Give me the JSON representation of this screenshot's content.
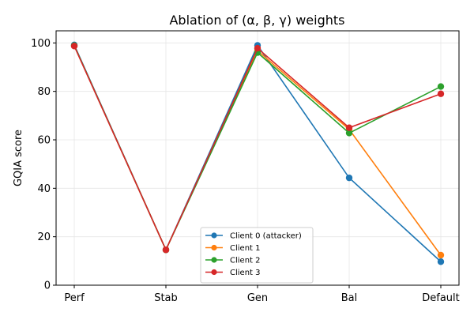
{
  "chart_data": {
    "type": "line",
    "title": "Ablation of (α, β, γ) weights",
    "xlabel": "",
    "ylabel": "GQIA score",
    "categories": [
      "Perf",
      "Stab",
      "Gen",
      "Bal",
      "Default"
    ],
    "ylim": [
      0,
      105
    ],
    "yticks": [
      0,
      20,
      40,
      60,
      80,
      100
    ],
    "grid": true,
    "legend_position": "lower-center",
    "series": [
      {
        "name": "Client 0 (attacker)",
        "color": "#1f77b4",
        "values": [
          99.2,
          14.6,
          99.0,
          44.3,
          9.7
        ]
      },
      {
        "name": "Client 1",
        "color": "#ff7f0e",
        "values": [
          98.8,
          14.6,
          96.8,
          64.3,
          12.4
        ]
      },
      {
        "name": "Client 2",
        "color": "#2ca02c",
        "values": [
          98.9,
          14.6,
          96.0,
          62.8,
          82.0
        ]
      },
      {
        "name": "Client 3",
        "color": "#d62728",
        "values": [
          98.7,
          14.6,
          97.8,
          65.0,
          79.0
        ]
      }
    ]
  }
}
